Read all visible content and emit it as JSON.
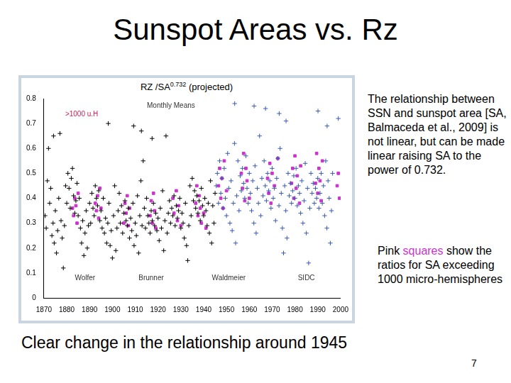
{
  "slide": {
    "title": "Sunspot Areas vs. Rz",
    "note_right": "The relationship between SSN and sunspot area [SA, Balmaceda et al., 2009] is not linear, but can be made linear raising SA to the power of 0.732.",
    "note_pink": {
      "before": "Pink ",
      "highlight": "squares",
      "after": " show the ratios for SA exceeding 1000 micro-hemispheres"
    },
    "footer": "Clear change in the relationship around 1945",
    "page": "7"
  },
  "chart_data": {
    "type": "scatter",
    "title": {
      "text": "RZ /SA",
      "superscript": "0.732",
      "suffix": "(projected)"
    },
    "xlim": [
      1870,
      2000
    ],
    "xticks": [
      1870,
      1880,
      1890,
      1900,
      1910,
      1920,
      1930,
      1940,
      1950,
      1960,
      1970,
      1980,
      1990,
      2000
    ],
    "ylim": [
      0,
      0.8
    ],
    "yticks": [
      0,
      0.1,
      0.2,
      0.3,
      0.4,
      0.5,
      0.6,
      0.7,
      0.8
    ],
    "grid": false,
    "annotations": [
      {
        "text": "Wolfer",
        "x": 1888,
        "y": 0.08
      },
      {
        "text": "Brunner",
        "x": 1917,
        "y": 0.08
      },
      {
        "text": "Waldmeier",
        "x": 1951,
        "y": 0.08
      },
      {
        "text": "SIDC",
        "x": 1985,
        "y": 0.08
      }
    ],
    "series": [
      {
        "name": "Monthly Means",
        "color": "#000000",
        "marker": "plus",
        "x": [
          1870.5,
          1871,
          1871.5,
          1872,
          1872.5,
          1873,
          1873.5,
          1874,
          1874.5,
          1875,
          1875.5,
          1876,
          1876.5,
          1877,
          1877.5,
          1878,
          1878.5,
          1879,
          1879.5,
          1880,
          1880.5,
          1881,
          1881.5,
          1882,
          1882.5,
          1883,
          1883.5,
          1884,
          1884.5,
          1885,
          1885.5,
          1886,
          1886.5,
          1887,
          1887.5,
          1888,
          1888.5,
          1889,
          1889.5,
          1890,
          1890.5,
          1891,
          1891.5,
          1892,
          1892.5,
          1893,
          1893.5,
          1894,
          1894.5,
          1895,
          1895.5,
          1896,
          1896.5,
          1897,
          1897.5,
          1898,
          1898.5,
          1899,
          1899.5,
          1900,
          1900.5,
          1901,
          1901.5,
          1902,
          1902.5,
          1903,
          1903.5,
          1904,
          1904.5,
          1905,
          1905.5,
          1906,
          1906.5,
          1907,
          1907.5,
          1908,
          1908.5,
          1909,
          1909.5,
          1910,
          1910.5,
          1911,
          1911.5,
          1912,
          1912.5,
          1913,
          1913.5,
          1914,
          1914.5,
          1915,
          1915.5,
          1916,
          1916.5,
          1917,
          1917.5,
          1918,
          1918.5,
          1919,
          1919.5,
          1920,
          1920.5,
          1921,
          1921.5,
          1922,
          1922.5,
          1923,
          1923.5,
          1924,
          1924.5,
          1925,
          1925.5,
          1926,
          1926.5,
          1927,
          1927.5,
          1928,
          1928.5,
          1929,
          1929.5,
          1930,
          1930.5,
          1931,
          1931.5,
          1932,
          1932.5,
          1933,
          1933.5,
          1934,
          1934.5,
          1935,
          1935.5,
          1936,
          1936.5,
          1937,
          1937.5,
          1938,
          1938.5,
          1939,
          1939.5,
          1940,
          1940.5,
          1941,
          1941.5,
          1942,
          1942.5,
          1943,
          1943.5,
          1944,
          1944.5,
          1945,
          1898.2,
          1909.3,
          1912.7,
          1917.4,
          1874.2
        ],
        "values": [
          0.33,
          0.28,
          0.47,
          0.6,
          0.38,
          0.44,
          0.25,
          0.3,
          0.22,
          0.35,
          0.18,
          0.27,
          0.4,
          0.66,
          0.31,
          0.24,
          0.12,
          0.29,
          0.45,
          0.38,
          0.5,
          0.44,
          0.36,
          0.48,
          0.52,
          0.41,
          0.34,
          0.39,
          0.46,
          0.33,
          0.4,
          0.28,
          0.22,
          0.31,
          0.17,
          0.26,
          0.35,
          0.2,
          0.29,
          0.38,
          0.3,
          0.42,
          0.36,
          0.33,
          0.45,
          0.4,
          0.37,
          0.43,
          0.31,
          0.35,
          0.28,
          0.4,
          0.26,
          0.32,
          0.22,
          0.3,
          0.38,
          0.21,
          0.27,
          0.16,
          0.33,
          0.45,
          0.19,
          0.28,
          0.35,
          0.42,
          0.3,
          0.37,
          0.26,
          0.34,
          0.39,
          0.31,
          0.29,
          0.36,
          0.24,
          0.32,
          0.27,
          0.38,
          0.21,
          0.3,
          0.25,
          0.41,
          0.18,
          0.33,
          0.47,
          0.29,
          0.55,
          0.36,
          0.28,
          0.4,
          0.33,
          0.3,
          0.26,
          0.35,
          0.31,
          0.38,
          0.29,
          0.34,
          0.27,
          0.32,
          0.23,
          0.36,
          0.28,
          0.43,
          0.19,
          0.31,
          0.65,
          0.26,
          0.34,
          0.39,
          0.3,
          0.36,
          0.33,
          0.41,
          0.29,
          0.37,
          0.32,
          0.35,
          0.4,
          0.28,
          0.34,
          0.3,
          0.24,
          0.38,
          0.21,
          0.15,
          0.29,
          0.45,
          0.33,
          0.48,
          0.39,
          0.43,
          0.36,
          0.41,
          0.34,
          0.39,
          0.31,
          0.44,
          0.37,
          0.33,
          0.4,
          0.35,
          0.29,
          0.38,
          0.26,
          0.47,
          0.22,
          0.37,
          0.3,
          0.42,
          0.7,
          0.69,
          0.67,
          0.64,
          0.65
        ]
      },
      {
        "color": "#3a5bb0",
        "marker": "plus",
        "x": [
          1945.5,
          1946,
          1946.5,
          1947,
          1947.5,
          1948,
          1948.5,
          1949,
          1949.5,
          1950,
          1950.5,
          1951,
          1951.5,
          1952,
          1952.5,
          1953,
          1953.5,
          1954,
          1954.5,
          1955,
          1955.5,
          1956,
          1956.5,
          1957,
          1957.5,
          1958,
          1958.5,
          1959,
          1959.5,
          1960,
          1960.5,
          1961,
          1961.5,
          1962,
          1962.5,
          1963,
          1963.5,
          1964,
          1964.5,
          1965,
          1965.5,
          1966,
          1966.5,
          1967,
          1967.5,
          1968,
          1968.5,
          1969,
          1969.5,
          1970,
          1970.5,
          1971,
          1971.5,
          1972,
          1972.5,
          1973,
          1973.5,
          1974,
          1974.5,
          1975,
          1975.5,
          1976,
          1976.5,
          1977,
          1977.5,
          1978,
          1978.5,
          1979,
          1979.5,
          1980,
          1980.5,
          1981,
          1981.5,
          1982,
          1982.5,
          1983,
          1983.5,
          1984,
          1984.5,
          1985,
          1985.5,
          1986,
          1986.5,
          1987,
          1987.5,
          1988,
          1988.5,
          1989,
          1989.5,
          1990,
          1990.5,
          1991,
          1991.5,
          1992,
          1992.5,
          1993,
          1993.5,
          1994,
          1994.5,
          1995,
          1995.5,
          1996,
          1996.5,
          1953.6,
          1962.1,
          1967.1,
          1973.1,
          1976.1,
          1990.1,
          1999,
          1994.1
        ],
        "values": [
          0.45,
          0.5,
          0.38,
          0.55,
          0.42,
          0.48,
          0.36,
          0.52,
          0.4,
          0.33,
          0.58,
          0.44,
          0.3,
          0.47,
          0.27,
          0.38,
          0.62,
          0.22,
          0.41,
          0.55,
          0.35,
          0.49,
          0.43,
          0.52,
          0.46,
          0.4,
          0.57,
          0.44,
          0.38,
          0.5,
          0.42,
          0.35,
          0.47,
          0.3,
          0.53,
          0.26,
          0.44,
          0.38,
          0.65,
          0.33,
          0.48,
          0.41,
          0.55,
          0.45,
          0.39,
          0.5,
          0.43,
          0.47,
          0.36,
          0.52,
          0.4,
          0.44,
          0.31,
          0.48,
          0.56,
          0.37,
          0.6,
          0.42,
          0.28,
          0.18,
          0.45,
          0.35,
          0.24,
          0.5,
          0.41,
          0.46,
          0.38,
          0.43,
          0.49,
          0.4,
          0.52,
          0.37,
          0.45,
          0.42,
          0.34,
          0.47,
          0.3,
          0.39,
          0.54,
          0.26,
          0.44,
          0.14,
          0.36,
          0.5,
          0.42,
          0.46,
          0.38,
          0.44,
          0.4,
          0.48,
          0.36,
          0.42,
          0.5,
          0.38,
          0.45,
          0.33,
          0.55,
          0.28,
          0.47,
          0.4,
          0.22,
          0.35,
          0.5,
          0.78,
          0.77,
          0.76,
          0.74,
          0.71,
          0.75,
          0.72,
          0.69
        ]
      },
      {
        "name": ">1000 u.H",
        "color": "#cc33cc",
        "marker": "square",
        "x": [
          1882.5,
          1883,
          1883.5,
          1884,
          1884.5,
          1885,
          1892.5,
          1893,
          1893.5,
          1894,
          1894.5,
          1895,
          1905,
          1905.5,
          1906,
          1906.5,
          1907,
          1907.5,
          1916.5,
          1917,
          1917.5,
          1918,
          1918.5,
          1919,
          1926.5,
          1927,
          1928,
          1928.5,
          1929,
          1930,
          1936.5,
          1937,
          1937.5,
          1938,
          1938.5,
          1939,
          1940,
          1941,
          1946.5,
          1947,
          1947.5,
          1948,
          1948.5,
          1949,
          1950,
          1956.5,
          1957,
          1957.5,
          1958,
          1958.5,
          1959,
          1960,
          1968,
          1968.5,
          1969,
          1969.5,
          1970,
          1971,
          1972.5,
          1978.5,
          1979,
          1979.5,
          1980,
          1980.5,
          1981,
          1982,
          1982.5,
          1989,
          1989.5,
          1990,
          1990.5,
          1991,
          1991.5,
          1992,
          1998.5,
          1999,
          1999.5
        ],
        "values": [
          0.36,
          0.33,
          0.4,
          0.37,
          0.3,
          0.42,
          0.38,
          0.35,
          0.41,
          0.32,
          0.44,
          0.36,
          0.3,
          0.38,
          0.34,
          0.41,
          0.29,
          0.36,
          0.33,
          0.39,
          0.3,
          0.42,
          0.35,
          0.28,
          0.4,
          0.34,
          0.43,
          0.31,
          0.37,
          0.29,
          0.38,
          0.45,
          0.33,
          0.41,
          0.36,
          0.3,
          0.34,
          0.28,
          0.45,
          0.52,
          0.4,
          0.48,
          0.36,
          0.55,
          0.43,
          0.5,
          0.44,
          0.58,
          0.39,
          0.52,
          0.47,
          0.4,
          0.48,
          0.42,
          0.54,
          0.38,
          0.5,
          0.45,
          0.56,
          0.46,
          0.52,
          0.4,
          0.57,
          0.44,
          0.49,
          0.38,
          0.53,
          0.46,
          0.58,
          0.42,
          0.52,
          0.47,
          0.39,
          0.55,
          0.45,
          0.5,
          0.4
        ]
      }
    ]
  }
}
